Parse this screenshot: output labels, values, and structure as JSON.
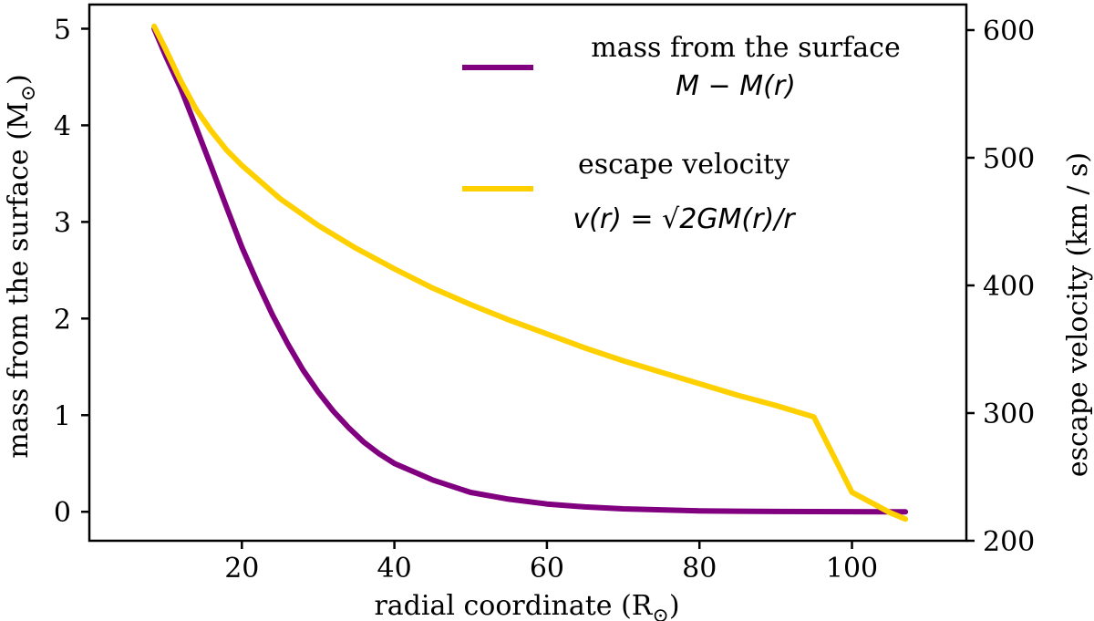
{
  "chart_data": {
    "type": "line",
    "xlabel": "radial coordinate (R",
    "xlabel_sub": "⊙",
    "xlabel_close": ")",
    "ylabel_left": "mass from the surface (M",
    "ylabel_left_sub": "⊙",
    "ylabel_left_close": ")",
    "ylabel_right": "escape velocity  (km / s)",
    "xlim": [
      0,
      115
    ],
    "ylim_left": [
      -0.3,
      5.25
    ],
    "ylim_right": [
      200,
      620
    ],
    "x_ticks": [
      20,
      40,
      60,
      80,
      100
    ],
    "y_left_ticks": [
      0,
      1,
      2,
      3,
      4,
      5
    ],
    "y_right_ticks": [
      200,
      300,
      400,
      500,
      600
    ],
    "grid": false,
    "legend_position": "top-right",
    "series": [
      {
        "name": "mass from the surface",
        "legend_math": "M − M(r)",
        "axis": "left",
        "color": "#800080",
        "x": [
          8.5,
          10,
          12,
          14,
          16,
          18,
          20,
          22,
          24,
          26,
          28,
          30,
          32,
          34,
          36,
          38,
          40,
          45,
          50,
          55,
          60,
          65,
          70,
          75,
          80,
          85,
          90,
          95,
          100,
          105,
          107
        ],
        "y": [
          5.0,
          4.72,
          4.38,
          3.98,
          3.57,
          3.15,
          2.74,
          2.38,
          2.04,
          1.74,
          1.47,
          1.24,
          1.04,
          0.87,
          0.72,
          0.6,
          0.5,
          0.33,
          0.2,
          0.13,
          0.08,
          0.05,
          0.03,
          0.02,
          0.01,
          0.006,
          0.003,
          0.002,
          0.001,
          0.0,
          0.0
        ]
      },
      {
        "name": "escape velocity",
        "legend_math": "v(r) = √2GM(r)/r",
        "axis": "right",
        "color": "#ffd000",
        "x": [
          8.5,
          10,
          12,
          14,
          16,
          18,
          20,
          25,
          30,
          35,
          40,
          45,
          50,
          55,
          60,
          65,
          70,
          75,
          80,
          85,
          90,
          95,
          100,
          105,
          107
        ],
        "y": [
          603,
          585,
          560,
          538,
          521,
          506,
          494,
          468,
          447,
          429,
          413,
          398,
          385,
          373,
          362,
          351,
          341,
          332,
          323,
          314,
          306,
          297,
          238,
          222,
          217
        ]
      }
    ]
  }
}
